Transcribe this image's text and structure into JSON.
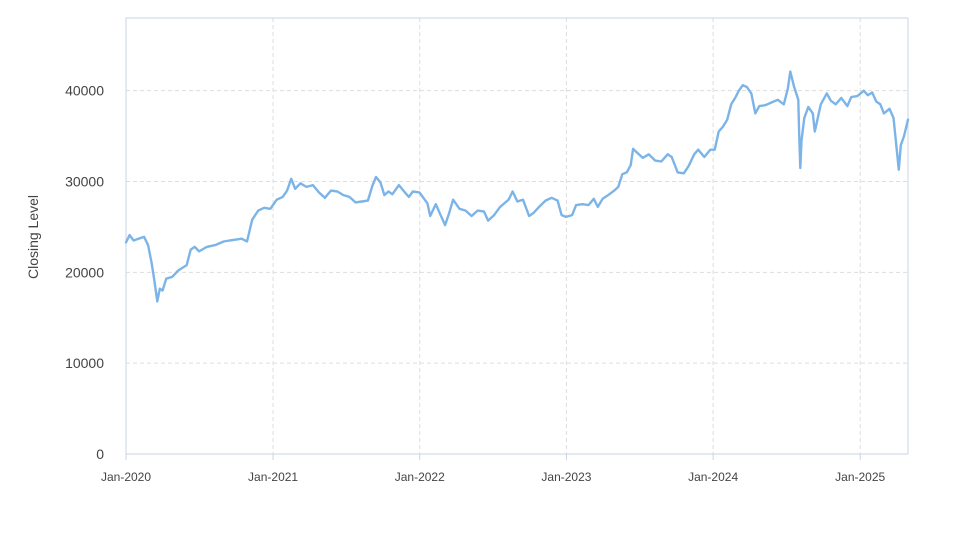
{
  "chart_data": {
    "type": "line",
    "title": "",
    "xlabel": "",
    "ylabel": "Closing Level",
    "ylim": [
      0,
      48000
    ],
    "xlim": [
      "2020-01-01",
      "2025-04-30"
    ],
    "yticks": [
      0,
      10000,
      20000,
      30000,
      40000
    ],
    "ytick_labels": [
      "0",
      "10000",
      "20000",
      "30000",
      "40000"
    ],
    "xticks": [
      "2020-01-01",
      "2021-01-01",
      "2022-01-01",
      "2023-01-01",
      "2024-01-01",
      "2025-01-01"
    ],
    "xtick_labels": [
      "Jan-2020",
      "Jan-2021",
      "Jan-2022",
      "Jan-2023",
      "Jan-2024",
      "Jan-2025"
    ],
    "grid": true,
    "legend": "none",
    "series": [
      {
        "color": "#7cb4e8",
        "points": [
          [
            "2020-01-01",
            23300
          ],
          [
            "2020-01-10",
            24100
          ],
          [
            "2020-01-20",
            23500
          ],
          [
            "2020-02-01",
            23700
          ],
          [
            "2020-02-15",
            23900
          ],
          [
            "2020-02-25",
            23000
          ],
          [
            "2020-03-05",
            21000
          ],
          [
            "2020-03-12",
            19000
          ],
          [
            "2020-03-19",
            16800
          ],
          [
            "2020-03-25",
            18200
          ],
          [
            "2020-04-01",
            18000
          ],
          [
            "2020-04-10",
            19300
          ],
          [
            "2020-04-25",
            19500
          ],
          [
            "2020-05-10",
            20200
          ],
          [
            "2020-05-31",
            20800
          ],
          [
            "2020-06-10",
            22500
          ],
          [
            "2020-06-20",
            22800
          ],
          [
            "2020-07-01",
            22300
          ],
          [
            "2020-07-20",
            22800
          ],
          [
            "2020-08-10",
            23000
          ],
          [
            "2020-08-31",
            23400
          ],
          [
            "2020-09-15",
            23500
          ],
          [
            "2020-10-01",
            23600
          ],
          [
            "2020-10-15",
            23700
          ],
          [
            "2020-10-28",
            23400
          ],
          [
            "2020-11-10",
            25800
          ],
          [
            "2020-11-25",
            26800
          ],
          [
            "2020-12-10",
            27100
          ],
          [
            "2020-12-25",
            27000
          ],
          [
            "2021-01-10",
            28000
          ],
          [
            "2021-01-25",
            28300
          ],
          [
            "2021-02-05",
            29000
          ],
          [
            "2021-02-15",
            30300
          ],
          [
            "2021-02-25",
            29200
          ],
          [
            "2021-03-10",
            29800
          ],
          [
            "2021-03-25",
            29400
          ],
          [
            "2021-04-10",
            29600
          ],
          [
            "2021-04-25",
            28800
          ],
          [
            "2021-05-10",
            28200
          ],
          [
            "2021-05-25",
            29000
          ],
          [
            "2021-06-10",
            28900
          ],
          [
            "2021-06-25",
            28500
          ],
          [
            "2021-07-10",
            28300
          ],
          [
            "2021-07-25",
            27700
          ],
          [
            "2021-08-10",
            27800
          ],
          [
            "2021-08-25",
            27900
          ],
          [
            "2021-09-05",
            29500
          ],
          [
            "2021-09-14",
            30500
          ],
          [
            "2021-09-25",
            29900
          ],
          [
            "2021-10-05",
            28500
          ],
          [
            "2021-10-15",
            28900
          ],
          [
            "2021-10-25",
            28600
          ],
          [
            "2021-11-10",
            29600
          ],
          [
            "2021-11-25",
            28800
          ],
          [
            "2021-12-05",
            28300
          ],
          [
            "2021-12-15",
            28900
          ],
          [
            "2021-12-31",
            28800
          ],
          [
            "2022-01-10",
            28200
          ],
          [
            "2022-01-20",
            27600
          ],
          [
            "2022-01-27",
            26200
          ],
          [
            "2022-02-10",
            27500
          ],
          [
            "2022-02-20",
            26500
          ],
          [
            "2022-03-05",
            25200
          ],
          [
            "2022-03-15",
            26500
          ],
          [
            "2022-03-25",
            28000
          ],
          [
            "2022-04-10",
            27000
          ],
          [
            "2022-04-25",
            26800
          ],
          [
            "2022-05-10",
            26200
          ],
          [
            "2022-05-25",
            26800
          ],
          [
            "2022-06-10",
            26700
          ],
          [
            "2022-06-20",
            25700
          ],
          [
            "2022-07-05",
            26300
          ],
          [
            "2022-07-20",
            27200
          ],
          [
            "2022-08-10",
            28000
          ],
          [
            "2022-08-20",
            28900
          ],
          [
            "2022-09-01",
            27800
          ],
          [
            "2022-09-15",
            28000
          ],
          [
            "2022-09-30",
            26200
          ],
          [
            "2022-10-10",
            26500
          ],
          [
            "2022-10-25",
            27200
          ],
          [
            "2022-11-10",
            27900
          ],
          [
            "2022-11-25",
            28200
          ],
          [
            "2022-12-10",
            27900
          ],
          [
            "2022-12-20",
            26300
          ],
          [
            "2022-12-31",
            26100
          ],
          [
            "2023-01-15",
            26300
          ],
          [
            "2023-01-25",
            27400
          ],
          [
            "2023-02-10",
            27500
          ],
          [
            "2023-02-25",
            27400
          ],
          [
            "2023-03-10",
            28100
          ],
          [
            "2023-03-20",
            27200
          ],
          [
            "2023-04-01",
            28100
          ],
          [
            "2023-04-15",
            28500
          ],
          [
            "2023-04-30",
            29000
          ],
          [
            "2023-05-10",
            29400
          ],
          [
            "2023-05-20",
            30800
          ],
          [
            "2023-05-31",
            31000
          ],
          [
            "2023-06-10",
            31800
          ],
          [
            "2023-06-16",
            33600
          ],
          [
            "2023-06-25",
            33200
          ],
          [
            "2023-07-10",
            32600
          ],
          [
            "2023-07-25",
            33000
          ],
          [
            "2023-08-10",
            32300
          ],
          [
            "2023-08-25",
            32200
          ],
          [
            "2023-09-10",
            33000
          ],
          [
            "2023-09-20",
            32700
          ],
          [
            "2023-10-05",
            31000
          ],
          [
            "2023-10-20",
            30900
          ],
          [
            "2023-11-01",
            31700
          ],
          [
            "2023-11-15",
            33000
          ],
          [
            "2023-11-25",
            33500
          ],
          [
            "2023-12-10",
            32700
          ],
          [
            "2023-12-25",
            33500
          ],
          [
            "2024-01-05",
            33500
          ],
          [
            "2024-01-15",
            35500
          ],
          [
            "2024-01-25",
            36000
          ],
          [
            "2024-02-05",
            36800
          ],
          [
            "2024-02-15",
            38500
          ],
          [
            "2024-02-25",
            39200
          ],
          [
            "2024-03-05",
            40000
          ],
          [
            "2024-03-15",
            40600
          ],
          [
            "2024-03-25",
            40400
          ],
          [
            "2024-04-05",
            39700
          ],
          [
            "2024-04-15",
            37500
          ],
          [
            "2024-04-25",
            38300
          ],
          [
            "2024-05-10",
            38400
          ],
          [
            "2024-05-25",
            38700
          ],
          [
            "2024-06-10",
            39000
          ],
          [
            "2024-06-25",
            38500
          ],
          [
            "2024-07-05",
            40200
          ],
          [
            "2024-07-11",
            42100
          ],
          [
            "2024-07-20",
            40500
          ],
          [
            "2024-07-31",
            39000
          ],
          [
            "2024-08-02",
            35500
          ],
          [
            "2024-08-05",
            31500
          ],
          [
            "2024-08-08",
            34500
          ],
          [
            "2024-08-15",
            37000
          ],
          [
            "2024-08-25",
            38200
          ],
          [
            "2024-09-05",
            37500
          ],
          [
            "2024-09-10",
            35500
          ],
          [
            "2024-09-25",
            38500
          ],
          [
            "2024-10-10",
            39700
          ],
          [
            "2024-10-20",
            38900
          ],
          [
            "2024-11-01",
            38500
          ],
          [
            "2024-11-15",
            39200
          ],
          [
            "2024-11-30",
            38300
          ],
          [
            "2024-12-10",
            39300
          ],
          [
            "2024-12-25",
            39400
          ],
          [
            "2025-01-10",
            40000
          ],
          [
            "2025-01-20",
            39500
          ],
          [
            "2025-01-31",
            39800
          ],
          [
            "2025-02-10",
            38800
          ],
          [
            "2025-02-20",
            38500
          ],
          [
            "2025-03-01",
            37500
          ],
          [
            "2025-03-15",
            38000
          ],
          [
            "2025-03-25",
            37000
          ],
          [
            "2025-04-07",
            31300
          ],
          [
            "2025-04-12",
            34000
          ],
          [
            "2025-04-20",
            35000
          ],
          [
            "2025-04-30",
            36800
          ]
        ]
      }
    ]
  }
}
